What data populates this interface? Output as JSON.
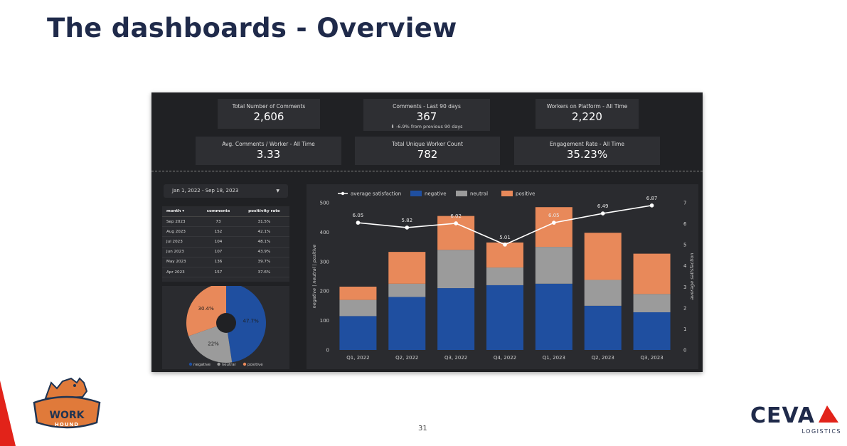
{
  "slide": {
    "title": "The dashboards - Overview",
    "page_number": "31"
  },
  "kpis": [
    {
      "label": "Total Number of Comments",
      "value": "2,606",
      "sub": ""
    },
    {
      "label": "Comments - Last 90 days",
      "value": "367",
      "sub": "⬇ -6.9% from previous 90 days"
    },
    {
      "label": "Workers on Platform - All Time",
      "value": "2,220",
      "sub": ""
    },
    {
      "label": "Avg. Comments / Worker - All Time",
      "value": "3.33",
      "sub": ""
    },
    {
      "label": "Total Unique Worker Count",
      "value": "782",
      "sub": ""
    },
    {
      "label": "Engagement Rate - All Time",
      "value": "35.23%",
      "sub": ""
    }
  ],
  "date_range": {
    "value": "Jan 1, 2022 - Sep 18, 2023"
  },
  "table": {
    "headers": [
      "month ▾",
      "comments",
      "positivity rate"
    ],
    "rows": [
      [
        "Sep 2023",
        "73",
        "31.5%"
      ],
      [
        "Aug 2023",
        "152",
        "42.1%"
      ],
      [
        "Jul 2023",
        "104",
        "48.1%"
      ],
      [
        "Jun 2023",
        "107",
        "43.9%"
      ],
      [
        "May 2023",
        "136",
        "39.7%"
      ],
      [
        "Apr 2023",
        "157",
        "37.6%"
      ]
    ]
  },
  "colors": {
    "negative": "#1f4fa0",
    "neutral": "#9b9b9b",
    "positive": "#e8895a",
    "line": "#ffffff"
  },
  "chart_data": [
    {
      "type": "pie",
      "categories": [
        "negative",
        "neutral",
        "positive"
      ],
      "values": [
        47.7,
        22,
        30.4
      ],
      "labels": [
        "47.7%",
        "22%",
        "30.4%"
      ],
      "legend": "bottom"
    },
    {
      "type": "bar",
      "stacked": true,
      "categories": [
        "Q1, 2022",
        "Q2, 2022",
        "Q3, 2022",
        "Q4, 2022",
        "Q1, 2023",
        "Q2, 2023",
        "Q3, 2023"
      ],
      "series": [
        {
          "name": "negative",
          "values": [
            115,
            180,
            210,
            220,
            225,
            150,
            128
          ]
        },
        {
          "name": "neutral",
          "values": [
            55,
            45,
            130,
            60,
            125,
            88,
            62
          ]
        },
        {
          "name": "positive",
          "values": [
            45,
            108,
            115,
            85,
            135,
            160,
            137
          ]
        }
      ],
      "line": {
        "name": "average satisfaction",
        "values": [
          6.05,
          5.82,
          6.02,
          5.01,
          6.05,
          6.49,
          6.87
        ],
        "labels": [
          "6.05",
          "5.82",
          "6.02",
          "5.01",
          "6.05",
          "6.49",
          "6.87"
        ]
      },
      "ylabel": "negative | neutral | positive",
      "y2label": "average satisfaction",
      "ylim": [
        0,
        500
      ],
      "y2lim": [
        0,
        7
      ],
      "yticks": [
        "0",
        "100",
        "200",
        "300",
        "400",
        "500"
      ],
      "y2ticks": [
        "0",
        "1",
        "2",
        "3",
        "4",
        "5",
        "6",
        "7"
      ],
      "legend": "top-left"
    }
  ],
  "logos": {
    "workhound": "WORK HOUND",
    "ceva": "CEVA",
    "ceva_sub": "LOGISTICS"
  }
}
